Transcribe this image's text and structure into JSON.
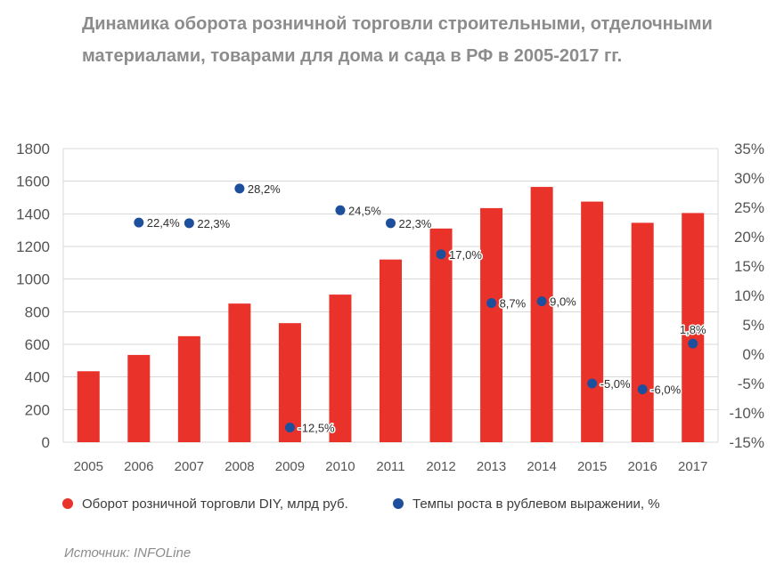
{
  "chart_data": {
    "type": "bar",
    "title": "Динамика оборота розничной торговли строительными, отделочными\nматериалами, товарами для дома и сада в РФ в 2005-2017 гг.",
    "categories": [
      "2005",
      "2006",
      "2007",
      "2008",
      "2009",
      "2010",
      "2011",
      "2012",
      "2013",
      "2014",
      "2015",
      "2016",
      "2017"
    ],
    "series": [
      {
        "name": "Оборот розничной торговли DIY, млрд руб.",
        "type": "bar",
        "axis": "left",
        "color": "#e8322a",
        "values": [
          435,
          535,
          650,
          850,
          730,
          905,
          1120,
          1310,
          1435,
          1565,
          1475,
          1345,
          1405
        ]
      },
      {
        "name": "Темпы роста в рублевом выражении, %",
        "type": "scatter",
        "axis": "right",
        "color": "#1e4f9c",
        "values": [
          null,
          22.4,
          22.3,
          28.2,
          -12.5,
          24.5,
          22.3,
          17.0,
          8.7,
          9.0,
          -5.0,
          -6.0,
          1.8
        ],
        "labels": [
          null,
          "22,4%",
          "22,3%",
          "28,2%",
          "-12,5%",
          "24,5%",
          "22,3%",
          "17,0%",
          "8,7%",
          "9,0%",
          "-5,0%",
          "-6,0%",
          "1,8%"
        ]
      }
    ],
    "xlabel": "",
    "ylabel": "",
    "y2label": "",
    "ylim": [
      0,
      1800
    ],
    "y2lim": [
      -15,
      35
    ],
    "yticks": [
      "0",
      "200",
      "400",
      "600",
      "800",
      "1000",
      "1200",
      "1400",
      "1600",
      "1800"
    ],
    "y2ticks": [
      "-15%",
      "-10%",
      "-5%",
      "0%",
      "5%",
      "10%",
      "15%",
      "20%",
      "25%",
      "30%",
      "35%"
    ],
    "grid": true,
    "legend": "bottom"
  },
  "source": "Источник: INFOLine"
}
